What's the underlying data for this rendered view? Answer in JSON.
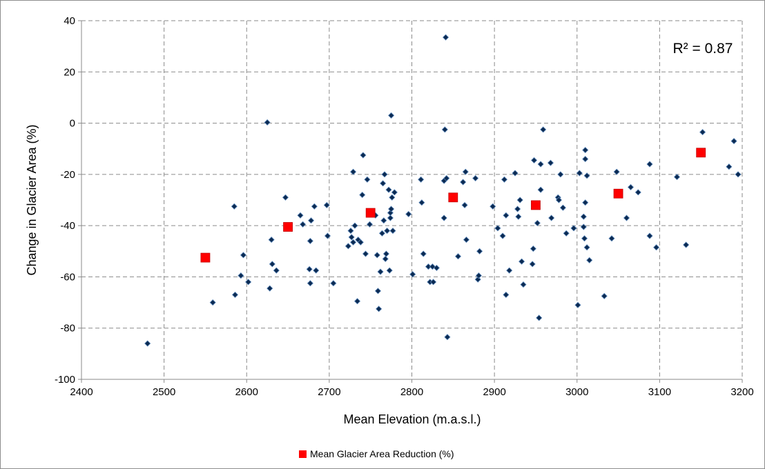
{
  "chart_data": {
    "type": "scatter",
    "xlabel": "Mean Elevation (m.a.s.l.)",
    "ylabel": "Change in Glacier Area (%)",
    "xlim": [
      2400,
      3200
    ],
    "ylim": [
      -100,
      40
    ],
    "x_ticks": [
      2400,
      2500,
      2600,
      2700,
      2800,
      2900,
      3000,
      3100,
      3200
    ],
    "y_ticks": [
      40,
      20,
      0,
      -20,
      -40,
      -60,
      -80,
      -100
    ],
    "grid": true,
    "legend_position": "bottom",
    "annotation": "R² = 0.87",
    "colors": {
      "glaciers": "#0b2a52",
      "mean": "#ff0000"
    },
    "series": [
      {
        "name": "",
        "marker": "diamond",
        "points": [
          [
            2480,
            -86
          ],
          [
            2559,
            -70
          ],
          [
            2585,
            -32.5
          ],
          [
            2586,
            -67
          ],
          [
            2593,
            -59.5
          ],
          [
            2596,
            -51.5
          ],
          [
            2602,
            -62
          ],
          [
            2625,
            0.3
          ],
          [
            2628,
            -64.5
          ],
          [
            2630,
            -45.5
          ],
          [
            2631,
            -55
          ],
          [
            2636,
            -57.5
          ],
          [
            2647,
            -29
          ],
          [
            2665,
            -36
          ],
          [
            2668,
            -39.5
          ],
          [
            2676,
            -57
          ],
          [
            2677,
            -46
          ],
          [
            2677,
            -62.5
          ],
          [
            2678,
            -38
          ],
          [
            2682,
            -32.5
          ],
          [
            2684,
            -57.5
          ],
          [
            2697,
            -32
          ],
          [
            2698,
            -44
          ],
          [
            2705,
            -62.5
          ],
          [
            2723,
            -48
          ],
          [
            2726,
            -42
          ],
          [
            2727,
            -44.5
          ],
          [
            2729,
            -19
          ],
          [
            2729,
            -46.5
          ],
          [
            2731,
            -40
          ],
          [
            2734,
            -69.5
          ],
          [
            2735,
            -45.5
          ],
          [
            2738,
            -46.5
          ],
          [
            2740,
            -28
          ],
          [
            2741,
            -12.5
          ],
          [
            2744,
            -51
          ],
          [
            2746,
            -22
          ],
          [
            2749,
            -39.5
          ],
          [
            2756,
            -36
          ],
          [
            2758,
            -51.5
          ],
          [
            2759,
            -65.5
          ],
          [
            2760,
            -72.5
          ],
          [
            2762,
            -58
          ],
          [
            2764,
            -43
          ],
          [
            2765,
            -23.5
          ],
          [
            2766,
            -38
          ],
          [
            2767,
            -20
          ],
          [
            2768,
            -53
          ],
          [
            2769,
            -51
          ],
          [
            2770,
            -42
          ],
          [
            2772,
            -26
          ],
          [
            2773,
            -57.5
          ],
          [
            2774,
            -37
          ],
          [
            2774,
            -35
          ],
          [
            2775,
            -33.5
          ],
          [
            2775,
            3
          ],
          [
            2776,
            -29
          ],
          [
            2777,
            -42
          ],
          [
            2779,
            -27
          ],
          [
            2796,
            -35.5
          ],
          [
            2801,
            -59
          ],
          [
            2811,
            -22
          ],
          [
            2812,
            -31
          ],
          [
            2814,
            -51
          ],
          [
            2820,
            -56
          ],
          [
            2822,
            -62
          ],
          [
            2825,
            -56
          ],
          [
            2826,
            -62
          ],
          [
            2830,
            -56.5
          ],
          [
            2839,
            -37
          ],
          [
            2839,
            -22.5
          ],
          [
            2840,
            -2.5
          ],
          [
            2841,
            33.5
          ],
          [
            2842,
            -21.5
          ],
          [
            2843,
            -83.5
          ],
          [
            2856,
            -52
          ],
          [
            2862,
            -23
          ],
          [
            2864,
            -32
          ],
          [
            2865,
            -19
          ],
          [
            2866,
            -45.5
          ],
          [
            2877,
            -21.5
          ],
          [
            2880,
            -61
          ],
          [
            2881,
            -59.5
          ],
          [
            2882,
            -50
          ],
          [
            2898,
            -32.5
          ],
          [
            2904,
            -41
          ],
          [
            2910,
            -44
          ],
          [
            2912,
            -22
          ],
          [
            2914,
            -36
          ],
          [
            2914,
            -67
          ],
          [
            2918,
            -57.5
          ],
          [
            2925,
            -19.5
          ],
          [
            2928,
            -33.5
          ],
          [
            2929,
            -36.5
          ],
          [
            2931,
            -30
          ],
          [
            2933,
            -54
          ],
          [
            2935,
            -63
          ],
          [
            2946,
            -55
          ],
          [
            2947,
            -49
          ],
          [
            2948,
            -14.5
          ],
          [
            2952,
            -39
          ],
          [
            2954,
            -76
          ],
          [
            2956,
            -16
          ],
          [
            2956,
            -26
          ],
          [
            2959,
            -2.5
          ],
          [
            2968,
            -15.5
          ],
          [
            2969,
            -37
          ],
          [
            2977,
            -29
          ],
          [
            2978,
            -30
          ],
          [
            2980,
            -20
          ],
          [
            2983,
            -33
          ],
          [
            2987,
            -43
          ],
          [
            2996,
            -41
          ],
          [
            3001,
            -71
          ],
          [
            3003,
            -19.5
          ],
          [
            3008,
            -40.5
          ],
          [
            3008,
            -36.5
          ],
          [
            3009,
            -45
          ],
          [
            3010,
            -14
          ],
          [
            3010,
            -10.5
          ],
          [
            3010,
            -31
          ],
          [
            3012,
            -48.5
          ],
          [
            3012,
            -20.5
          ],
          [
            3015,
            -53.5
          ],
          [
            3033,
            -67.5
          ],
          [
            3042,
            -45
          ],
          [
            3048,
            -19
          ],
          [
            3060,
            -37
          ],
          [
            3065,
            -25
          ],
          [
            3074,
            -27
          ],
          [
            3088,
            -16
          ],
          [
            3088,
            -44
          ],
          [
            3096,
            -48.5
          ],
          [
            3121,
            -21
          ],
          [
            3132,
            -47.5
          ],
          [
            3152,
            -3.5
          ],
          [
            3184,
            -17
          ],
          [
            3190,
            -7
          ],
          [
            3195,
            -20
          ]
        ]
      },
      {
        "name": "Mean Glacier Area Reduction (%)",
        "marker": "square",
        "points": [
          [
            2550,
            -52.5
          ],
          [
            2650,
            -40.5
          ],
          [
            2750,
            -35
          ],
          [
            2850,
            -29
          ],
          [
            2950,
            -32
          ],
          [
            3050,
            -27.5
          ],
          [
            3150,
            -11.5
          ]
        ]
      }
    ]
  }
}
